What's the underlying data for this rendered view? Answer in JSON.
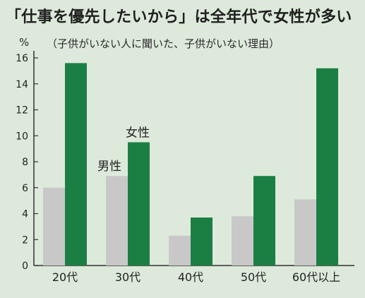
{
  "header": {
    "title": "「仕事を優先したいから」は全年代で女性が多い",
    "subtitle": "（子供がいない人に聞いた、子供がいない理由）",
    "unit": "%"
  },
  "colors": {
    "background": "#ddeadb",
    "male": "#c8c8c8",
    "female": "#1b7f43",
    "axis": "#333333"
  },
  "chart_data": {
    "type": "bar",
    "categories": [
      "20代",
      "30代",
      "40代",
      "50代",
      "60代以上"
    ],
    "series": [
      {
        "name": "男性",
        "values": [
          6.0,
          6.9,
          2.3,
          3.8,
          5.1
        ]
      },
      {
        "name": "女性",
        "values": [
          15.6,
          9.5,
          3.7,
          6.9,
          15.2
        ]
      }
    ],
    "ylabel": "%",
    "ylim": [
      0,
      16
    ],
    "yticks": [
      0,
      2,
      4,
      6,
      8,
      10,
      12,
      14,
      16
    ],
    "grid": false,
    "legend": "inline series labels above 30代 bars"
  }
}
